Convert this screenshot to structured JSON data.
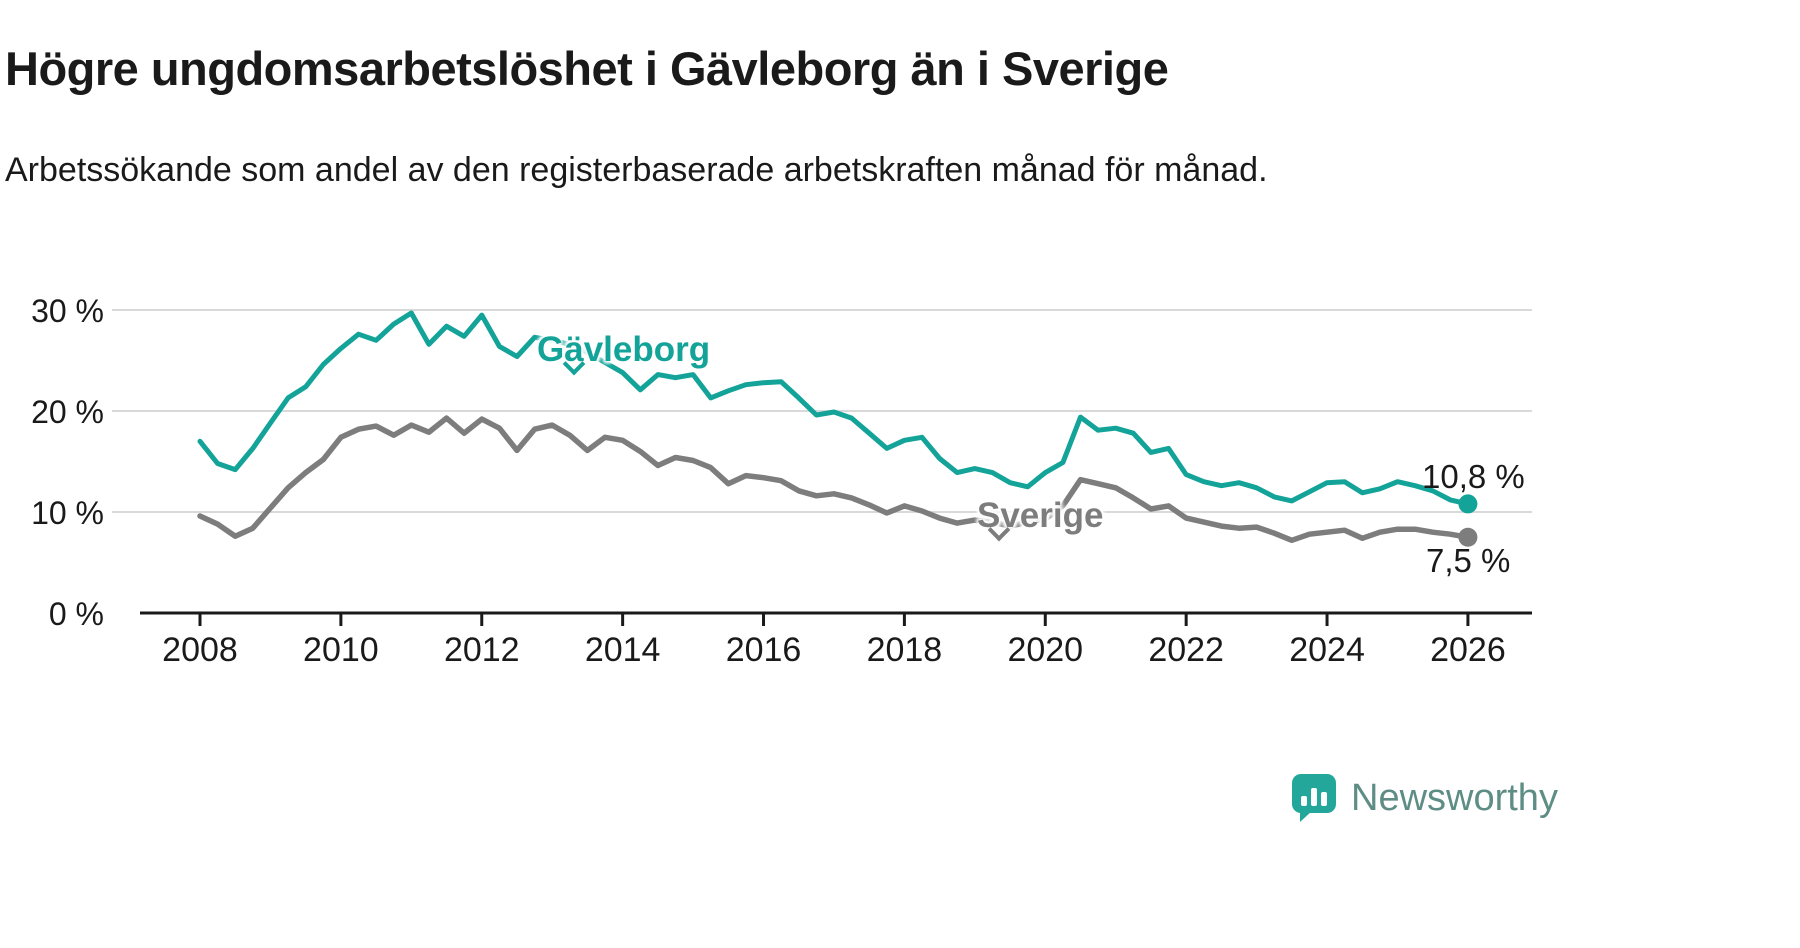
{
  "chart_data": {
    "type": "line",
    "title": "Högre ungdomsarbetslöshet i Gävleborg än i Sverige",
    "subtitle": "Arbetssökande som andel av den registerbaserade arbetskraften månad för månad.",
    "x_unit": "year",
    "x_start": 2008,
    "x_step": 0.25,
    "xticks": [
      2008,
      2010,
      2012,
      2014,
      2016,
      2018,
      2020,
      2022,
      2024,
      2026
    ],
    "yticks": [
      0,
      10,
      20,
      30
    ],
    "ytick_labels": [
      "0 %",
      "10 %",
      "20 %",
      "30 %"
    ],
    "ylim": [
      0,
      31
    ],
    "xlim": [
      2007,
      2026.9
    ],
    "grid": "horizontal",
    "legend": "inline-labels",
    "series": [
      {
        "name": "Gävleborg",
        "color": "#13a399",
        "end_label": "10,8 %",
        "end_value": 10.8,
        "values": [
          17.0,
          14.8,
          14.2,
          16.3,
          18.8,
          21.3,
          22.4,
          24.6,
          26.2,
          27.6,
          27.0,
          28.6,
          29.7,
          26.6,
          28.4,
          27.4,
          29.5,
          26.4,
          25.4,
          27.3,
          27.0,
          26.6,
          25.8,
          24.8,
          23.8,
          22.1,
          23.6,
          23.3,
          23.6,
          21.3,
          22.0,
          22.6,
          22.8,
          22.9,
          21.3,
          19.6,
          19.9,
          19.3,
          17.8,
          16.3,
          17.1,
          17.4,
          15.3,
          13.9,
          14.3,
          13.9,
          12.9,
          12.5,
          13.9,
          14.9,
          19.4,
          18.1,
          18.3,
          17.8,
          15.9,
          16.3,
          13.7,
          13.0,
          12.6,
          12.9,
          12.4,
          11.5,
          11.1,
          12.0,
          12.9,
          13.0,
          11.9,
          12.3,
          13.0,
          12.6,
          12.1,
          11.2,
          10.8
        ]
      },
      {
        "name": "Sverige",
        "color": "#7d7d7d",
        "end_label": "7,5 %",
        "end_value": 7.5,
        "values": [
          9.6,
          8.8,
          7.6,
          8.4,
          10.4,
          12.4,
          13.9,
          15.2,
          17.4,
          18.2,
          18.5,
          17.6,
          18.6,
          17.9,
          19.3,
          17.8,
          19.2,
          18.3,
          16.1,
          18.2,
          18.6,
          17.6,
          16.1,
          17.4,
          17.1,
          16.0,
          14.6,
          15.4,
          15.1,
          14.4,
          12.8,
          13.6,
          13.4,
          13.1,
          12.1,
          11.6,
          11.8,
          11.4,
          10.7,
          9.9,
          10.6,
          10.1,
          9.4,
          8.9,
          9.2,
          9.0,
          8.6,
          9.0,
          9.3,
          10.6,
          13.2,
          12.8,
          12.4,
          11.4,
          10.3,
          10.6,
          9.4,
          9.0,
          8.6,
          8.4,
          8.5,
          7.9,
          7.2,
          7.8,
          8.0,
          8.2,
          7.4,
          8.0,
          8.3,
          8.3,
          8.0,
          7.8,
          7.5
        ]
      }
    ],
    "axis_color": "#1a1a1a",
    "gridline_color": "#d9d9d9"
  },
  "branding": {
    "logo_text": "Newsworthy",
    "logo_color": "#24a79b"
  }
}
